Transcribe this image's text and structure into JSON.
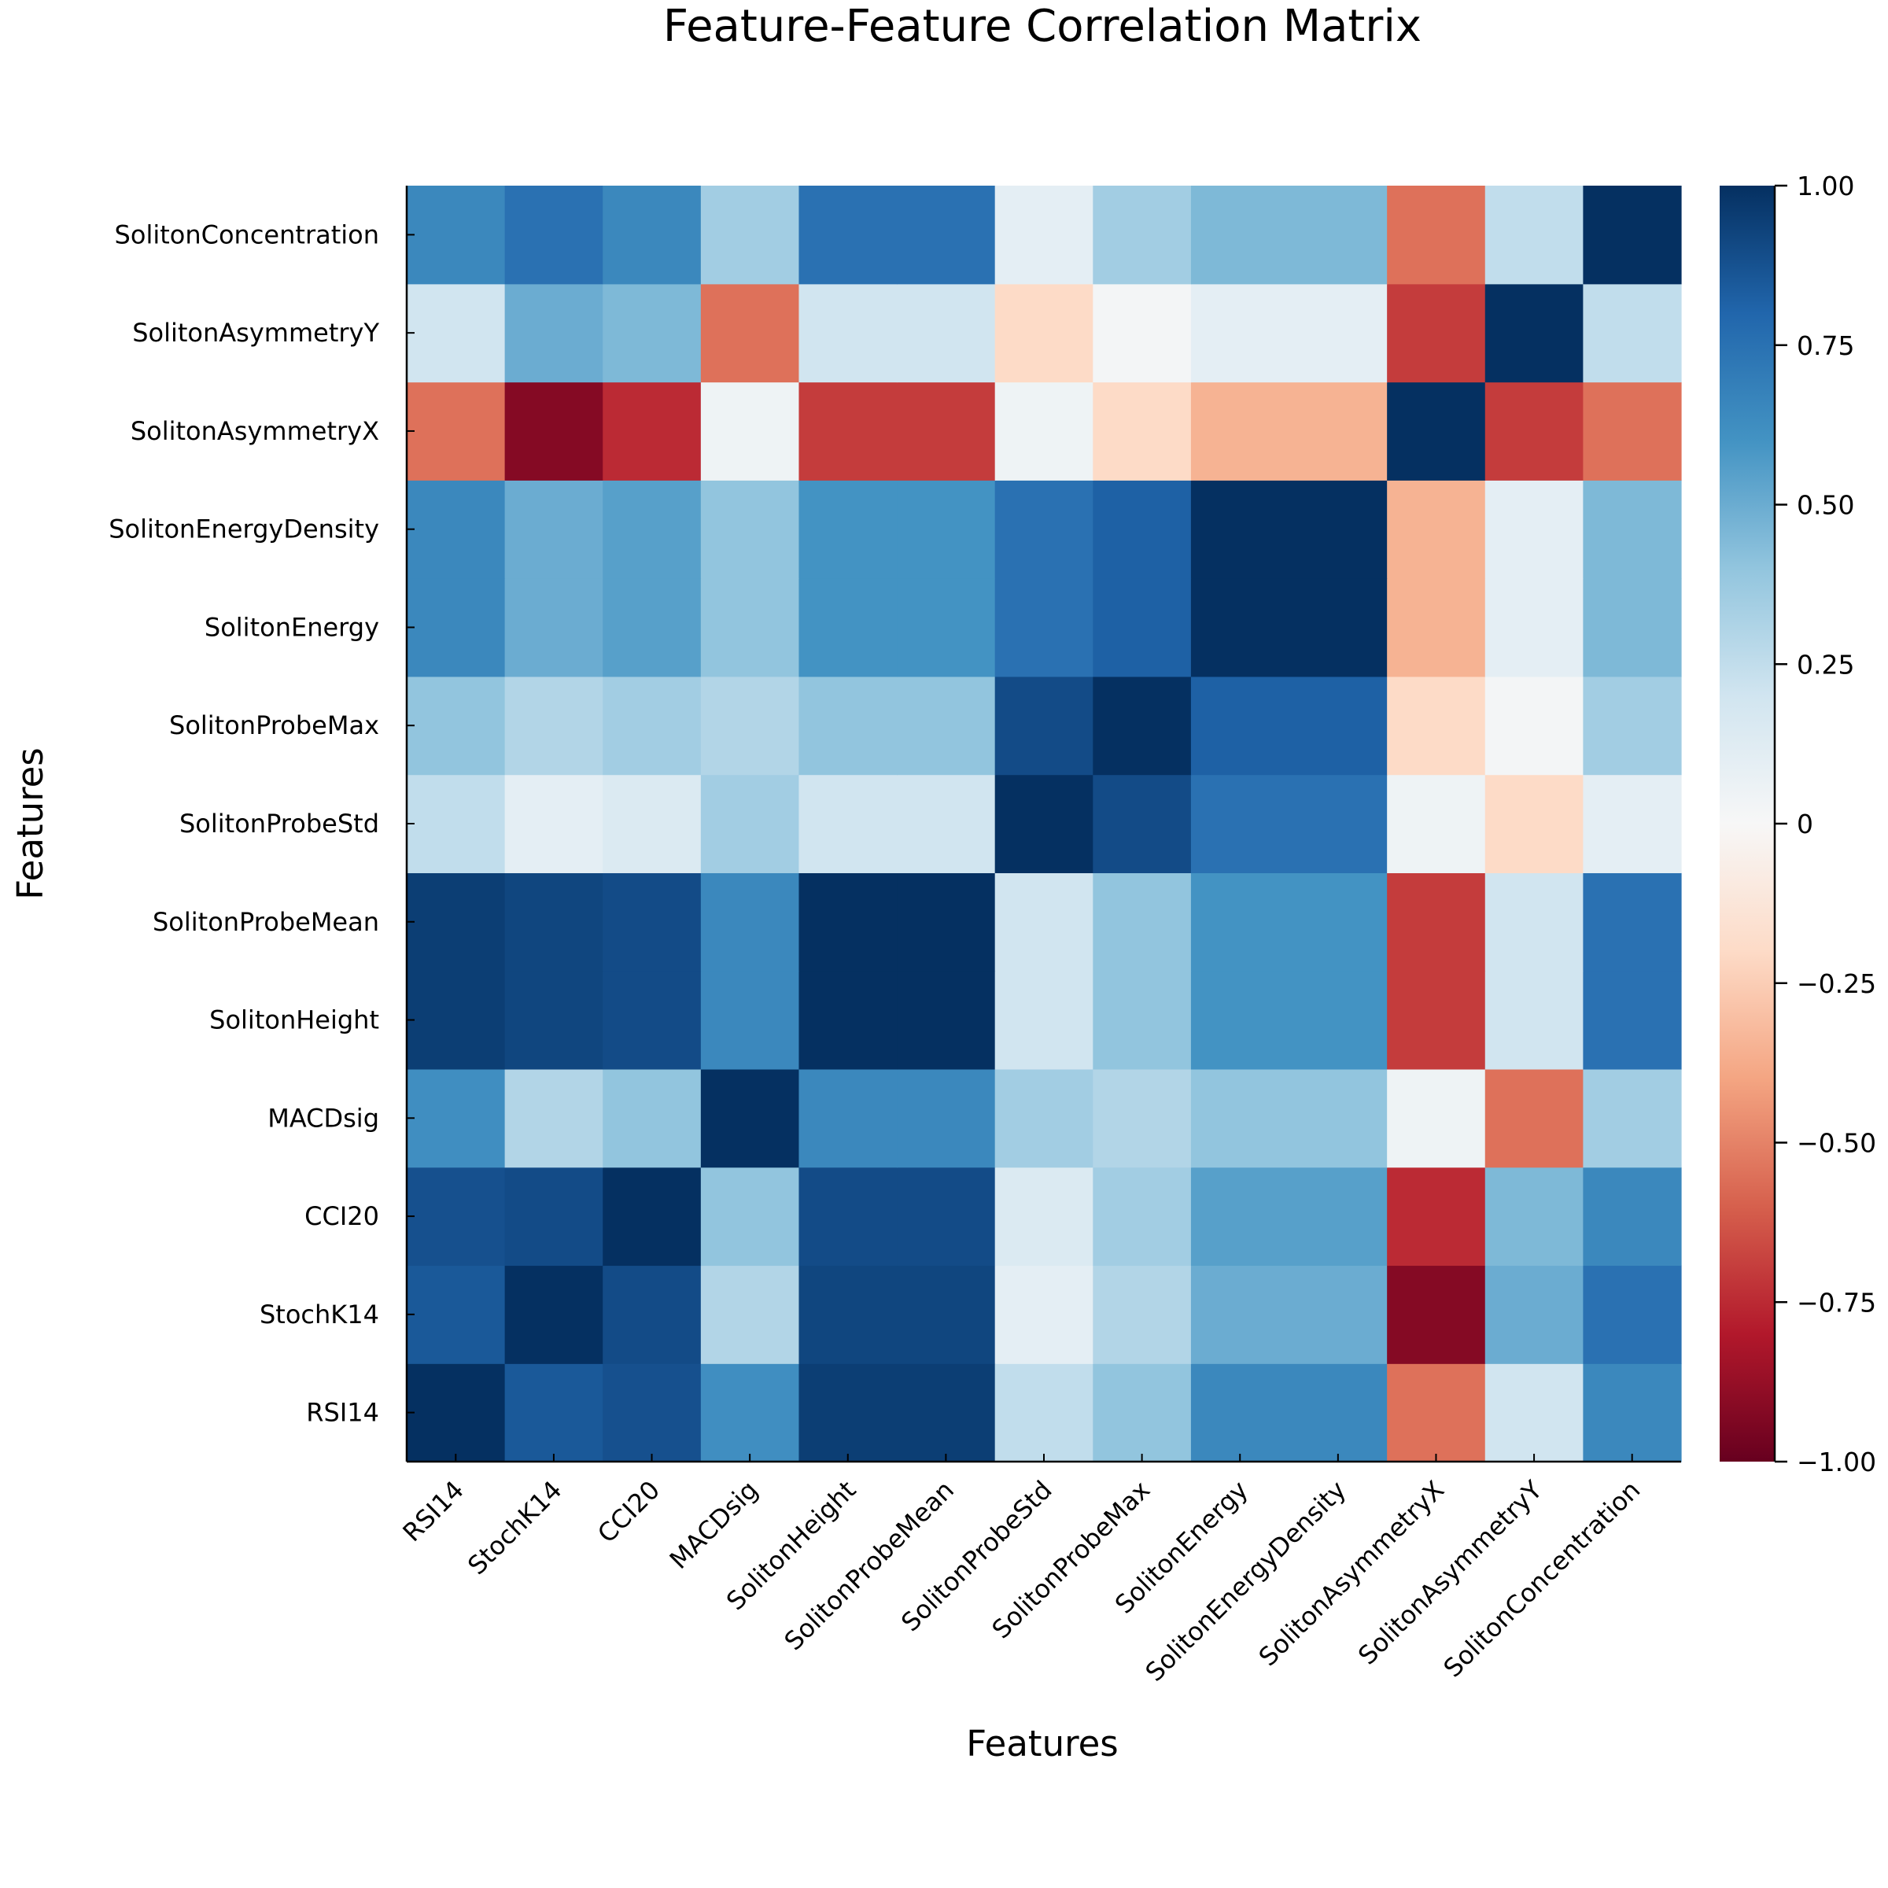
{
  "chart_data": {
    "type": "heatmap",
    "title": "Feature-Feature Correlation Matrix",
    "xlabel": "Features",
    "ylabel": "Features",
    "features": [
      "RSI14",
      "StochK14",
      "CCI20",
      "MACDsig",
      "SolitonHeight",
      "SolitonProbeMean",
      "SolitonProbeStd",
      "SolitonProbeMax",
      "SolitonEnergy",
      "SolitonEnergyDensity",
      "SolitonAsymmetryX",
      "SolitonAsymmetryY",
      "SolitonConcentration"
    ],
    "colorbar": {
      "range": [
        -1.0,
        1.0
      ],
      "ticks": [
        1.0,
        0.75,
        0.5,
        0.25,
        0,
        -0.25,
        -0.5,
        -0.75,
        -1.0
      ],
      "tick_labels": [
        "1.00",
        "0.75",
        "0.50",
        "0.25",
        "0",
        "−0.25",
        "−0.50",
        "−0.75",
        "−1.00"
      ],
      "colormap": "RdBu",
      "colors": [
        "#67001f",
        "#b2182b",
        "#d6604d",
        "#f4a582",
        "#fddbc7",
        "#f7f7f7",
        "#d1e5f0",
        "#92c5de",
        "#4393c3",
        "#2166ac",
        "#053061"
      ]
    },
    "matrix": [
      [
        1.0,
        0.85,
        0.88,
        0.62,
        0.95,
        0.95,
        0.25,
        0.4,
        0.65,
        0.65,
        -0.55,
        0.2,
        0.65
      ],
      [
        0.85,
        1.0,
        0.9,
        0.3,
        0.92,
        0.92,
        0.1,
        0.3,
        0.5,
        0.5,
        -0.92,
        0.5,
        0.75
      ],
      [
        0.88,
        0.9,
        1.0,
        0.4,
        0.9,
        0.9,
        0.15,
        0.35,
        0.55,
        0.55,
        -0.75,
        0.45,
        0.65
      ],
      [
        0.62,
        0.3,
        0.4,
        1.0,
        0.65,
        0.65,
        0.35,
        0.3,
        0.4,
        0.4,
        0.05,
        -0.55,
        0.35
      ],
      [
        0.95,
        0.92,
        0.9,
        0.65,
        1.0,
        1.0,
        0.2,
        0.4,
        0.6,
        0.6,
        -0.7,
        0.2,
        0.75
      ],
      [
        0.95,
        0.92,
        0.9,
        0.65,
        1.0,
        1.0,
        0.2,
        0.4,
        0.6,
        0.6,
        -0.7,
        0.2,
        0.75
      ],
      [
        0.25,
        0.1,
        0.15,
        0.35,
        0.2,
        0.2,
        1.0,
        0.9,
        0.75,
        0.75,
        0.05,
        -0.2,
        0.1
      ],
      [
        0.4,
        0.3,
        0.35,
        0.3,
        0.4,
        0.4,
        0.9,
        1.0,
        0.82,
        0.82,
        -0.2,
        0.02,
        0.35
      ],
      [
        0.65,
        0.5,
        0.55,
        0.4,
        0.6,
        0.6,
        0.75,
        0.82,
        1.0,
        1.0,
        -0.35,
        0.1,
        0.45
      ],
      [
        0.65,
        0.5,
        0.55,
        0.4,
        0.6,
        0.6,
        0.75,
        0.82,
        1.0,
        1.0,
        -0.35,
        0.1,
        0.45
      ],
      [
        -0.55,
        -0.92,
        -0.75,
        0.05,
        -0.7,
        -0.7,
        0.05,
        -0.2,
        -0.35,
        -0.35,
        1.0,
        -0.7,
        -0.55
      ],
      [
        0.2,
        0.5,
        0.45,
        -0.55,
        0.2,
        0.2,
        -0.2,
        0.02,
        0.1,
        0.1,
        -0.7,
        1.0,
        0.25
      ],
      [
        0.65,
        0.75,
        0.65,
        0.35,
        0.75,
        0.75,
        0.1,
        0.35,
        0.45,
        0.45,
        -0.55,
        0.25,
        1.0
      ]
    ]
  }
}
